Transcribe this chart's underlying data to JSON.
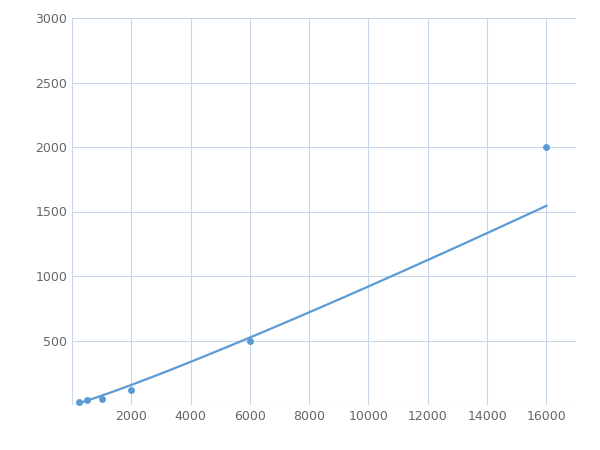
{
  "x": [
    250,
    500,
    1000,
    2000,
    6000,
    16000
  ],
  "y": [
    20,
    40,
    50,
    120,
    500,
    2000
  ],
  "line_color": "#5B9BD5",
  "marker_color": "#5B9BD5",
  "marker_size": 5,
  "line_width": 1.6,
  "xlim": [
    0,
    17000
  ],
  "ylim": [
    0,
    3000
  ],
  "xticks": [
    0,
    2000,
    4000,
    6000,
    8000,
    10000,
    12000,
    14000,
    16000
  ],
  "yticks": [
    0,
    500,
    1000,
    1500,
    2000,
    2500,
    3000
  ],
  "grid": true,
  "background_color": "#ffffff",
  "figure_bg": "#ffffff"
}
